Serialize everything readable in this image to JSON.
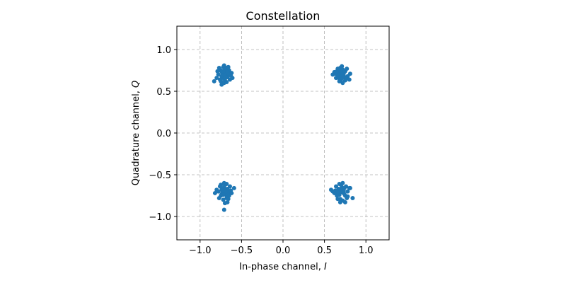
{
  "chart_data": {
    "type": "scatter",
    "title": "Constellation",
    "xlabel_main": "In-phase channel, ",
    "xlabel_var": "I",
    "ylabel_main": "Quadrature channel, ",
    "ylabel_var": "Q",
    "xlim": [
      -1.28,
      1.28
    ],
    "ylim": [
      -1.28,
      1.28
    ],
    "xticks": [
      -1.0,
      -0.5,
      0.0,
      0.5,
      1.0
    ],
    "yticks": [
      -1.0,
      -0.5,
      0.0,
      0.5,
      1.0
    ],
    "xtick_labels": [
      "−1.0",
      "−0.5",
      "0.0",
      "0.5",
      "1.0"
    ],
    "ytick_labels": [
      "−1.0",
      "−0.5",
      "0.0",
      "0.5",
      "1.0"
    ],
    "grid": true,
    "marker_color": "#1f77b4",
    "series": [
      {
        "points": [
          [
            -0.707,
            0.707
          ],
          [
            -0.74,
            0.68
          ],
          [
            -0.69,
            0.74
          ],
          [
            -0.72,
            0.66
          ],
          [
            -0.66,
            0.71
          ],
          [
            -0.75,
            0.75
          ],
          [
            -0.7,
            0.62
          ],
          [
            -0.63,
            0.69
          ],
          [
            -0.78,
            0.7
          ],
          [
            -0.68,
            0.78
          ],
          [
            -0.73,
            0.72
          ],
          [
            -0.71,
            0.65
          ],
          [
            -0.67,
            0.67
          ],
          [
            -0.76,
            0.64
          ],
          [
            -0.65,
            0.75
          ],
          [
            -0.72,
            0.79
          ],
          [
            -0.69,
            0.7
          ],
          [
            -0.74,
            0.73
          ],
          [
            -0.7,
            0.76
          ],
          [
            -0.8,
            0.66
          ],
          [
            -0.64,
            0.64
          ],
          [
            -0.71,
            0.6
          ],
          [
            -0.62,
            0.72
          ],
          [
            -0.77,
            0.78
          ],
          [
            -0.68,
            0.61
          ],
          [
            -0.73,
            0.69
          ],
          [
            -0.66,
            0.79
          ],
          [
            -0.7,
            0.68
          ],
          [
            -0.75,
            0.62
          ],
          [
            -0.72,
            0.74
          ],
          [
            -0.83,
            0.62
          ],
          [
            -0.61,
            0.66
          ],
          [
            -0.79,
            0.74
          ],
          [
            -0.67,
            0.73
          ],
          [
            -0.74,
            0.58
          ],
          [
            -0.69,
            0.66
          ],
          [
            -0.71,
            0.81
          ],
          [
            0.707,
            0.707
          ],
          [
            0.72,
            0.69
          ],
          [
            0.68,
            0.73
          ],
          [
            0.74,
            0.67
          ],
          [
            0.66,
            0.7
          ],
          [
            0.75,
            0.74
          ],
          [
            0.7,
            0.64
          ],
          [
            0.63,
            0.71
          ],
          [
            0.78,
            0.68
          ],
          [
            0.69,
            0.78
          ],
          [
            0.73,
            0.71
          ],
          [
            0.71,
            0.66
          ],
          [
            0.67,
            0.68
          ],
          [
            0.76,
            0.65
          ],
          [
            0.65,
            0.74
          ],
          [
            0.72,
            0.76
          ],
          [
            0.7,
            0.7
          ],
          [
            0.74,
            0.73
          ],
          [
            0.71,
            0.8
          ],
          [
            0.8,
            0.64
          ],
          [
            0.64,
            0.66
          ],
          [
            0.72,
            0.6
          ],
          [
            0.62,
            0.73
          ],
          [
            0.77,
            0.77
          ],
          [
            0.68,
            0.62
          ],
          [
            0.73,
            0.69
          ],
          [
            0.66,
            0.77
          ],
          [
            0.7,
            0.72
          ],
          [
            0.75,
            0.63
          ],
          [
            0.69,
            0.75
          ],
          [
            0.6,
            0.7
          ],
          [
            0.81,
            0.71
          ],
          [
            0.67,
            0.66
          ],
          [
            -0.707,
            -0.707
          ],
          [
            -0.74,
            -0.68
          ],
          [
            -0.69,
            -0.74
          ],
          [
            -0.72,
            -0.66
          ],
          [
            -0.66,
            -0.71
          ],
          [
            -0.75,
            -0.75
          ],
          [
            -0.7,
            -0.62
          ],
          [
            -0.63,
            -0.69
          ],
          [
            -0.78,
            -0.7
          ],
          [
            -0.68,
            -0.78
          ],
          [
            -0.73,
            -0.72
          ],
          [
            -0.71,
            -0.65
          ],
          [
            -0.67,
            -0.67
          ],
          [
            -0.76,
            -0.64
          ],
          [
            -0.65,
            -0.75
          ],
          [
            -0.72,
            -0.8
          ],
          [
            -0.69,
            -0.7
          ],
          [
            -0.74,
            -0.73
          ],
          [
            -0.7,
            -0.84
          ],
          [
            -0.8,
            -0.68
          ],
          [
            -0.64,
            -0.64
          ],
          [
            -0.71,
            -0.6
          ],
          [
            -0.62,
            -0.72
          ],
          [
            -0.77,
            -0.78
          ],
          [
            -0.68,
            -0.61
          ],
          [
            -0.73,
            -0.69
          ],
          [
            -0.66,
            -0.79
          ],
          [
            -0.7,
            -0.68
          ],
          [
            -0.75,
            -0.62
          ],
          [
            -0.72,
            -0.74
          ],
          [
            -0.71,
            -0.92
          ],
          [
            -0.59,
            -0.66
          ],
          [
            -0.82,
            -0.72
          ],
          [
            -0.67,
            -0.83
          ],
          [
            0.707,
            -0.707
          ],
          [
            0.72,
            -0.69
          ],
          [
            0.68,
            -0.74
          ],
          [
            0.74,
            -0.66
          ],
          [
            0.66,
            -0.71
          ],
          [
            0.75,
            -0.75
          ],
          [
            0.7,
            -0.62
          ],
          [
            0.63,
            -0.69
          ],
          [
            0.78,
            -0.7
          ],
          [
            0.69,
            -0.79
          ],
          [
            0.73,
            -0.72
          ],
          [
            0.71,
            -0.65
          ],
          [
            0.67,
            -0.67
          ],
          [
            0.76,
            -0.64
          ],
          [
            0.65,
            -0.75
          ],
          [
            0.72,
            -0.81
          ],
          [
            0.7,
            -0.7
          ],
          [
            0.74,
            -0.73
          ],
          [
            0.69,
            -0.83
          ],
          [
            0.8,
            -0.66
          ],
          [
            0.64,
            -0.64
          ],
          [
            0.72,
            -0.6
          ],
          [
            0.62,
            -0.72
          ],
          [
            0.77,
            -0.78
          ],
          [
            0.68,
            -0.61
          ],
          [
            0.73,
            -0.69
          ],
          [
            0.66,
            -0.79
          ],
          [
            0.7,
            -0.68
          ],
          [
            0.75,
            -0.83
          ],
          [
            0.6,
            -0.7
          ],
          [
            0.84,
            -0.78
          ],
          [
            0.81,
            -0.66
          ],
          [
            0.58,
            -0.68
          ],
          [
            0.78,
            -0.76
          ]
        ]
      }
    ]
  }
}
